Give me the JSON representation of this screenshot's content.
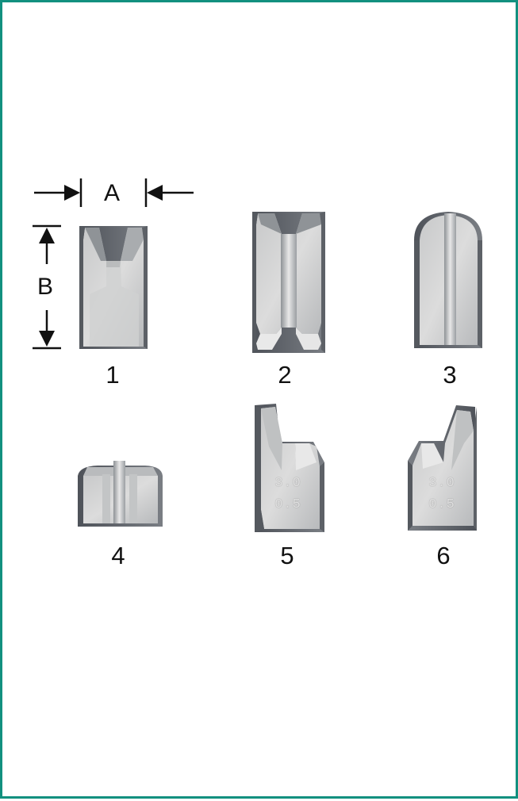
{
  "dimensions": {
    "width_label": "A",
    "height_label": "B"
  },
  "parts": [
    {
      "number": "1",
      "engraving": ""
    },
    {
      "number": "2",
      "engraving": ""
    },
    {
      "number": "3",
      "engraving": ""
    },
    {
      "number": "4",
      "engraving": ""
    },
    {
      "number": "5",
      "engraving": [
        "3.0",
        "0.5"
      ]
    },
    {
      "number": "6",
      "engraving": [
        "3.0",
        "0.5"
      ]
    }
  ],
  "colors": {
    "border": "#12907f",
    "steel_light": "#d9d9d9",
    "steel_dark": "#6b6e73",
    "edge": "#4f5257"
  },
  "icons": [
    "arrow-right-icon",
    "arrow-left-icon",
    "arrow-up-icon",
    "arrow-down-icon"
  ]
}
